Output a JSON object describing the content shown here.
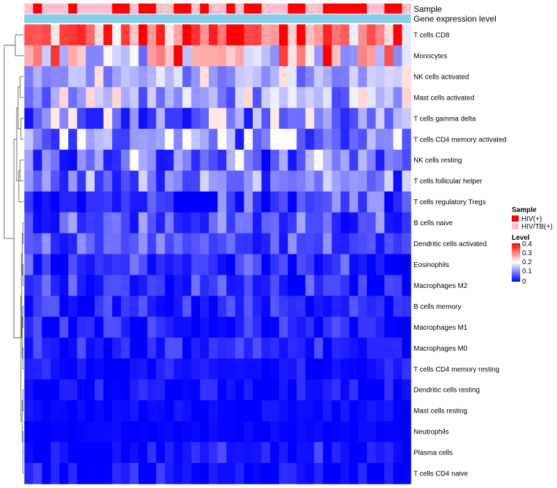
{
  "chart_data": {
    "type": "heatmap",
    "title": "",
    "annotation_rows": [
      "Sample",
      "Gene expression level"
    ],
    "rows": [
      "T cells CD8",
      "Monocytes",
      "NK cells activated",
      "Mast cells activated",
      "T cells gamma delta",
      "T cells CD4 memory activated",
      "NK cells resting",
      "T cells follicular helper",
      "T cells regulatory  Tregs",
      "B cells naive",
      "Dendritic cells activated",
      "Eosinophils",
      "Macrophages M2",
      "B cells memory",
      "Macrophages M1",
      "Macrophages M0",
      "T cells CD4 memory resting",
      "Dendritic cells resting",
      "Mast cells resting",
      "Neutrophils",
      "Plasma cells",
      "T cells CD4 naive"
    ],
    "n_columns": 44,
    "sample_groups": [
      "T",
      "H",
      "T",
      "T",
      "T",
      "H",
      "T",
      "T",
      "T",
      "T",
      "H",
      "H",
      "T",
      "H",
      "H",
      "T",
      "T",
      "H",
      "H",
      "T",
      "H",
      "T",
      "T",
      "H",
      "T",
      "H",
      "H",
      "T",
      "T",
      "T",
      "H",
      "H",
      "T",
      "T",
      "H",
      "H",
      "H",
      "H",
      "H",
      "T",
      "T",
      "H",
      "H",
      "T"
    ],
    "value_range": [
      0,
      0.4
    ],
    "cluster_rows": true,
    "legend": {
      "sample": {
        "title": "Sample",
        "entries": [
          {
            "label": "HIV(+)",
            "color": "#ff0000"
          },
          {
            "label": "HIV/TB(+)",
            "color": "#ffc0cb"
          }
        ]
      },
      "level": {
        "title": "Level",
        "ticks": [
          "0.4",
          "0.3",
          "0.2",
          "0.1",
          "0"
        ],
        "colors": [
          "#0000ff",
          "#ffffff",
          "#ff0000"
        ]
      }
    },
    "expression_annotation_color": "#87ceeb",
    "row_profiles": [
      {
        "base": 0.3,
        "spread": 0.12
      },
      {
        "base": 0.22,
        "spread": 0.14
      },
      {
        "base": 0.13,
        "spread": 0.06
      },
      {
        "base": 0.12,
        "spread": 0.07
      },
      {
        "base": 0.09,
        "spread": 0.08
      },
      {
        "base": 0.09,
        "spread": 0.07
      },
      {
        "base": 0.07,
        "spread": 0.08
      },
      {
        "base": 0.07,
        "spread": 0.06
      },
      {
        "base": 0.04,
        "spread": 0.05
      },
      {
        "base": 0.05,
        "spread": 0.05
      },
      {
        "base": 0.05,
        "spread": 0.04
      },
      {
        "base": 0.03,
        "spread": 0.04
      },
      {
        "base": 0.025,
        "spread": 0.04
      },
      {
        "base": 0.02,
        "spread": 0.03
      },
      {
        "base": 0.015,
        "spread": 0.03
      },
      {
        "base": 0.015,
        "spread": 0.03
      },
      {
        "base": 0.008,
        "spread": 0.02
      },
      {
        "base": 0.008,
        "spread": 0.02
      },
      {
        "base": 0.004,
        "spread": 0.01
      },
      {
        "base": 0.002,
        "spread": 0.005
      },
      {
        "base": 0.012,
        "spread": 0.03
      },
      {
        "base": 0.01,
        "spread": 0.025
      }
    ]
  }
}
